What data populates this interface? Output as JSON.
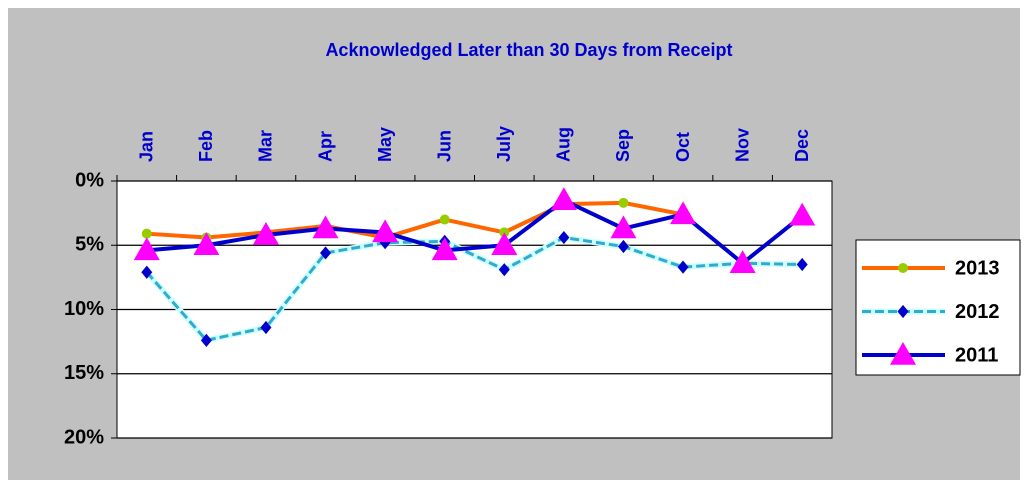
{
  "chart_data": {
    "type": "line",
    "title": "Acknowledged Later than 30 Days from Receipt",
    "categories": [
      "Jan",
      "Feb",
      "Mar",
      "Apr",
      "May",
      "Jun",
      "July",
      "Aug",
      "Sep",
      "Oct",
      "Nov",
      "Dec"
    ],
    "series": [
      {
        "name": "2013",
        "color": "#ff6600",
        "marker": "circle",
        "marker_color": "#99cc00",
        "values": [
          4.1,
          4.4,
          4.0,
          3.5,
          4.4,
          3.0,
          4.0,
          1.8,
          1.7,
          2.6,
          null,
          null
        ]
      },
      {
        "name": "2012",
        "color": "#33aacc",
        "under_color": "#ccffff",
        "dashed": true,
        "marker": "diamond",
        "marker_color": "#0000cc",
        "values": [
          7.1,
          12.4,
          11.4,
          5.6,
          4.8,
          4.7,
          6.9,
          4.4,
          5.1,
          6.7,
          6.4,
          6.5
        ]
      },
      {
        "name": "2011",
        "color": "#0000cc",
        "marker": "triangle",
        "marker_color": "#ff00ff",
        "values": [
          5.4,
          5.0,
          4.2,
          3.7,
          4.0,
          5.4,
          5.0,
          1.5,
          3.7,
          2.6,
          6.4,
          2.7
        ]
      }
    ],
    "ylim": [
      0,
      20
    ],
    "y_reversed": true,
    "yticks": [
      {
        "value": 0,
        "label": "0%"
      },
      {
        "value": 5,
        "label": "5%"
      },
      {
        "value": 10,
        "label": "10%"
      },
      {
        "value": 15,
        "label": "15%"
      },
      {
        "value": 20,
        "label": "20%"
      }
    ],
    "grid": true,
    "legend": "right"
  }
}
